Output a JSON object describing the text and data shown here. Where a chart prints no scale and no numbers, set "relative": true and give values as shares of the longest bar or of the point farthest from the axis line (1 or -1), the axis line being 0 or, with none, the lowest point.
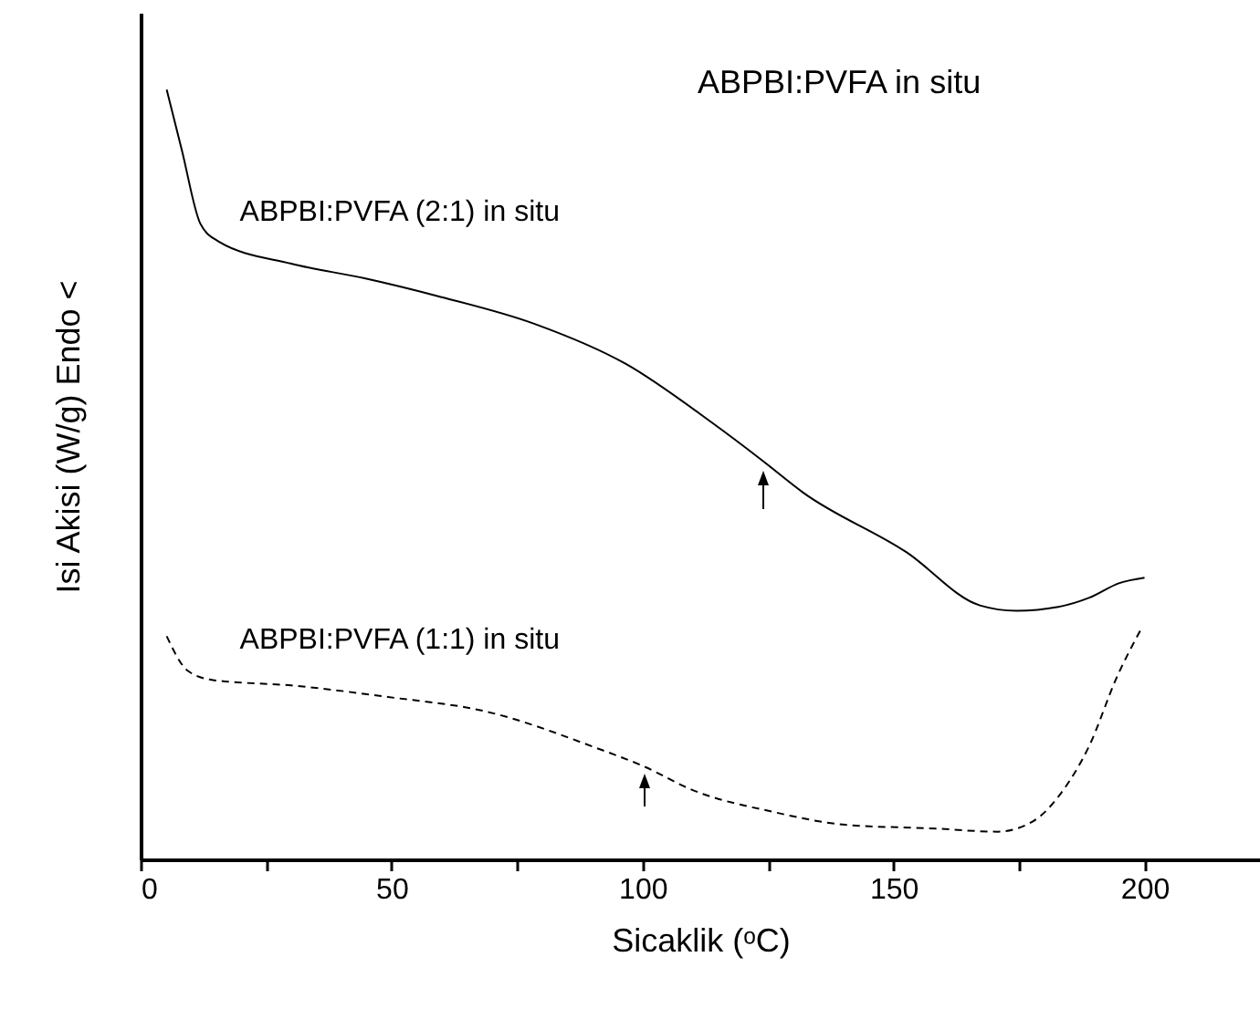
{
  "chart_data": {
    "type": "line",
    "title": "ABPBI:PVFA in situ",
    "xlabel": "Sicaklik (ᵒC)",
    "ylabel": "Isi Akisi (W/g) Endo <",
    "relative": true,
    "xlim": [
      0,
      223
    ],
    "xticks": [
      0,
      {
        "value": 25,
        "label": null
      },
      50,
      {
        "value": 75,
        "label": null
      },
      100,
      {
        "value": 125,
        "label": null
      },
      150,
      {
        "value": 175,
        "label": null
      },
      200
    ],
    "grid": false,
    "marker": "none",
    "series": [
      {
        "name": "ABPBI:PVFA (2:1) in situ",
        "color": "#000000",
        "line_style": "solid",
        "x": [
          5.2,
          8.2,
          11.9,
          15.5,
          30,
          44.6,
          59.1,
          78.4,
          96.6,
          113.7,
          123.9,
          131.9,
          152.6,
          167.2,
          174.5,
          182.8,
          189,
          195,
          200
        ],
        "values": [
          1.0,
          0.922,
          0.826,
          0.803,
          0.774,
          0.755,
          0.732,
          0.696,
          0.644,
          0.568,
          0.518,
          0.477,
          0.399,
          0.33,
          0.323,
          0.328,
          0.34,
          0.359,
          0.366
        ]
      },
      {
        "name": "ABPBI:PVFA (1:1) in situ",
        "color": "#000000",
        "line_style": "dashed",
        "x": [
          5.2,
          9.4,
          14.4,
          30,
          49.3,
          68.9,
          90.7,
          100.2,
          110,
          125.8,
          140.4,
          158.5,
          170.7,
          177.9,
          183.8,
          188.8,
          194.7,
          199.3
        ],
        "values": [
          0.29,
          0.245,
          0.233,
          0.226,
          0.211,
          0.192,
          0.145,
          0.121,
          0.09,
          0.062,
          0.045,
          0.04,
          0.036,
          0.05,
          0.09,
          0.145,
          0.24,
          0.299
        ]
      }
    ]
  }
}
